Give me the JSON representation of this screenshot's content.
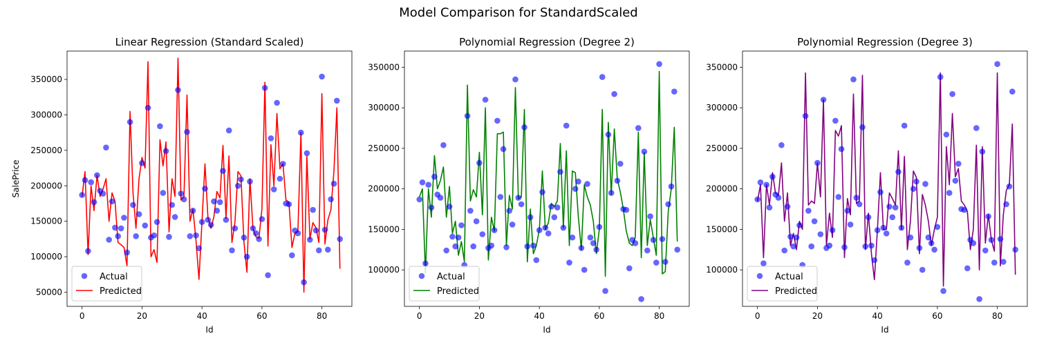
{
  "figure": {
    "suptitle": "Model Comparison for StandardScaled"
  },
  "chart_data": [
    {
      "type": "scatter+line",
      "title": "Linear Regression (Standard Scaled)",
      "xlabel": "Id",
      "ylabel": "SalePrice",
      "xlim": [
        -5,
        90
      ],
      "ylim": [
        30000,
        390000
      ],
      "xticks": [
        0,
        20,
        40,
        60,
        80
      ],
      "yticks": [
        50000,
        100000,
        150000,
        200000,
        250000,
        300000,
        350000
      ],
      "legend": {
        "position": "lower-left",
        "entries": [
          "Actual",
          "Predicted"
        ]
      },
      "colors": {
        "actual": "#0000ff",
        "predicted": "#ff0000"
      },
      "x": [
        0,
        1,
        2,
        3,
        4,
        5,
        6,
        7,
        8,
        9,
        10,
        11,
        12,
        13,
        14,
        15,
        16,
        17,
        18,
        19,
        20,
        21,
        22,
        23,
        24,
        25,
        26,
        27,
        28,
        29,
        30,
        31,
        32,
        33,
        34,
        35,
        36,
        37,
        38,
        39,
        40,
        41,
        42,
        43,
        44,
        45,
        46,
        47,
        48,
        49,
        50,
        51,
        52,
        53,
        54,
        55,
        56,
        57,
        58,
        59,
        60,
        61,
        62,
        63,
        64,
        65,
        66,
        67,
        68,
        69,
        70,
        71,
        72,
        73,
        74,
        75,
        76,
        77,
        78,
        79,
        80,
        81,
        82,
        83,
        84,
        85,
        86
      ],
      "actual": [
        187000,
        208000,
        108000,
        205000,
        177000,
        215000,
        193000,
        189000,
        254000,
        124000,
        178000,
        141000,
        129000,
        140000,
        155000,
        106000,
        290000,
        173000,
        129000,
        160000,
        232000,
        144000,
        310000,
        127000,
        130000,
        149000,
        284000,
        190000,
        249000,
        128000,
        173000,
        156000,
        335000,
        189000,
        181000,
        276000,
        129000,
        165000,
        130000,
        112000,
        149000,
        196000,
        152000,
        145000,
        178000,
        165000,
        177000,
        221000,
        152000,
        278000,
        109000,
        140000,
        200000,
        209000,
        127000,
        100000,
        206000,
        140000,
        133000,
        125000,
        153000,
        338000,
        74000,
        267000,
        195000,
        317000,
        210000,
        231000,
        175000,
        174000,
        102000,
        137000,
        133000,
        275000,
        64000,
        246000,
        124000,
        166000,
        137000,
        109000,
        354000,
        138000,
        110000,
        181000,
        203000,
        320000,
        125000
      ],
      "predicted": [
        185000,
        220000,
        103000,
        200000,
        165000,
        215000,
        185000,
        195000,
        210000,
        150000,
        190000,
        178000,
        120000,
        117000,
        113000,
        87000,
        305000,
        190000,
        140000,
        210000,
        240000,
        225000,
        375000,
        100000,
        110000,
        92000,
        265000,
        228000,
        262000,
        135000,
        210000,
        185000,
        380000,
        180000,
        185000,
        328000,
        150000,
        167000,
        123000,
        68000,
        150000,
        231000,
        155000,
        140000,
        157000,
        192000,
        183000,
        257000,
        154000,
        242000,
        120000,
        149000,
        220000,
        214000,
        120000,
        78000,
        210000,
        140000,
        128000,
        126000,
        168000,
        346000,
        115000,
        258000,
        200000,
        302000,
        224000,
        231000,
        180000,
        177000,
        113000,
        133000,
        135000,
        275000,
        50000,
        242000,
        125000,
        148000,
        141000,
        120000,
        330000,
        118000,
        152000,
        166000,
        220000,
        310000,
        83000
      ]
    },
    {
      "type": "scatter+line",
      "title": "Polynomial Regression (Degree 2)",
      "xlabel": "Id",
      "ylabel": "",
      "xlim": [
        -5,
        90
      ],
      "ylim": [
        55000,
        370000
      ],
      "xticks": [
        0,
        20,
        40,
        60,
        80
      ],
      "yticks": [
        100000,
        150000,
        200000,
        250000,
        300000,
        350000
      ],
      "legend": {
        "position": "lower-left",
        "entries": [
          "Actual",
          "Predicted"
        ]
      },
      "colors": {
        "actual": "#0000ff",
        "predicted": "#008000"
      },
      "x": [
        0,
        1,
        2,
        3,
        4,
        5,
        6,
        7,
        8,
        9,
        10,
        11,
        12,
        13,
        14,
        15,
        16,
        17,
        18,
        19,
        20,
        21,
        22,
        23,
        24,
        25,
        26,
        27,
        28,
        29,
        30,
        31,
        32,
        33,
        34,
        35,
        36,
        37,
        38,
        39,
        40,
        41,
        42,
        43,
        44,
        45,
        46,
        47,
        48,
        49,
        50,
        51,
        52,
        53,
        54,
        55,
        56,
        57,
        58,
        59,
        60,
        61,
        62,
        63,
        64,
        65,
        66,
        67,
        68,
        69,
        70,
        71,
        72,
        73,
        74,
        75,
        76,
        77,
        78,
        79,
        80,
        81,
        82,
        83,
        84,
        85,
        86
      ],
      "actual": [
        187000,
        208000,
        108000,
        205000,
        177000,
        215000,
        193000,
        189000,
        254000,
        124000,
        178000,
        141000,
        129000,
        140000,
        155000,
        106000,
        290000,
        173000,
        129000,
        160000,
        232000,
        144000,
        310000,
        127000,
        130000,
        149000,
        284000,
        190000,
        249000,
        128000,
        173000,
        156000,
        335000,
        189000,
        181000,
        276000,
        129000,
        165000,
        130000,
        112000,
        149000,
        196000,
        152000,
        145000,
        178000,
        165000,
        177000,
        221000,
        152000,
        278000,
        109000,
        140000,
        200000,
        209000,
        127000,
        100000,
        206000,
        140000,
        133000,
        125000,
        153000,
        338000,
        74000,
        267000,
        195000,
        317000,
        210000,
        231000,
        175000,
        174000,
        102000,
        137000,
        133000,
        275000,
        64000,
        246000,
        124000,
        166000,
        137000,
        109000,
        354000,
        138000,
        110000,
        181000,
        203000,
        320000,
        125000
      ],
      "predicted": [
        190000,
        200000,
        96000,
        200000,
        165000,
        241000,
        200000,
        210000,
        227000,
        165000,
        203000,
        145000,
        160000,
        118000,
        135000,
        110000,
        328000,
        185000,
        199000,
        190000,
        245000,
        168000,
        300000,
        112000,
        165000,
        148000,
        268000,
        268000,
        270000,
        130000,
        192000,
        175000,
        325000,
        188000,
        190000,
        298000,
        110000,
        175000,
        120000,
        130000,
        150000,
        222000,
        150000,
        158000,
        182000,
        178000,
        185000,
        256000,
        152000,
        247000,
        130000,
        222000,
        220000,
        166000,
        125000,
        205000,
        190000,
        180000,
        160000,
        120000,
        150000,
        298000,
        92000,
        282000,
        193000,
        274000,
        212000,
        196000,
        175000,
        148000,
        133000,
        130000,
        140000,
        270000,
        115000,
        245000,
        130000,
        162000,
        140000,
        118000,
        345000,
        95000,
        98000,
        172000,
        200000,
        276000,
        135000
      ]
    },
    {
      "type": "scatter+line",
      "title": "Polynomial Regression (Degree 3)",
      "xlabel": "Id",
      "ylabel": "",
      "xlim": [
        -5,
        90
      ],
      "ylim": [
        55000,
        370000
      ],
      "xticks": [
        0,
        20,
        40,
        60,
        80
      ],
      "yticks": [
        100000,
        150000,
        200000,
        250000,
        300000,
        350000
      ],
      "legend": {
        "position": "lower-left",
        "entries": [
          "Actual",
          "Predicted"
        ]
      },
      "colors": {
        "actual": "#0000ff",
        "predicted": "#800080"
      },
      "x": [
        0,
        1,
        2,
        3,
        4,
        5,
        6,
        7,
        8,
        9,
        10,
        11,
        12,
        13,
        14,
        15,
        16,
        17,
        18,
        19,
        20,
        21,
        22,
        23,
        24,
        25,
        26,
        27,
        28,
        29,
        30,
        31,
        32,
        33,
        34,
        35,
        36,
        37,
        38,
        39,
        40,
        41,
        42,
        43,
        44,
        45,
        46,
        47,
        48,
        49,
        50,
        51,
        52,
        53,
        54,
        55,
        56,
        57,
        58,
        59,
        60,
        61,
        62,
        63,
        64,
        65,
        66,
        67,
        68,
        69,
        70,
        71,
        72,
        73,
        74,
        75,
        76,
        77,
        78,
        79,
        80,
        81,
        82,
        83,
        84,
        85,
        86
      ],
      "actual": [
        187000,
        208000,
        108000,
        205000,
        177000,
        215000,
        193000,
        189000,
        254000,
        124000,
        178000,
        141000,
        129000,
        140000,
        155000,
        106000,
        290000,
        173000,
        129000,
        160000,
        232000,
        144000,
        310000,
        127000,
        130000,
        149000,
        284000,
        190000,
        249000,
        128000,
        173000,
        156000,
        335000,
        189000,
        181000,
        276000,
        129000,
        165000,
        130000,
        112000,
        149000,
        196000,
        152000,
        145000,
        178000,
        165000,
        177000,
        221000,
        152000,
        278000,
        109000,
        140000,
        200000,
        209000,
        127000,
        100000,
        206000,
        140000,
        133000,
        125000,
        153000,
        338000,
        74000,
        267000,
        195000,
        317000,
        210000,
        231000,
        175000,
        174000,
        102000,
        137000,
        133000,
        275000,
        64000,
        246000,
        124000,
        166000,
        137000,
        109000,
        354000,
        138000,
        110000,
        181000,
        203000,
        320000,
        125000
      ],
      "predicted": [
        185000,
        205000,
        115000,
        205000,
        180000,
        220000,
        195000,
        192000,
        232000,
        160000,
        195000,
        130000,
        145000,
        125000,
        160000,
        150000,
        343000,
        180000,
        185000,
        182000,
        232000,
        190000,
        310000,
        130000,
        170000,
        140000,
        272000,
        265000,
        278000,
        115000,
        188000,
        168000,
        317000,
        182000,
        185000,
        340000,
        125000,
        170000,
        120000,
        88000,
        150000,
        220000,
        150000,
        150000,
        195000,
        188000,
        180000,
        247000,
        150000,
        240000,
        125000,
        160000,
        222000,
        214000,
        120000,
        193000,
        180000,
        160000,
        130000,
        150000,
        165000,
        343000,
        80000,
        252000,
        205000,
        293000,
        215000,
        225000,
        185000,
        180000,
        172000,
        125000,
        150000,
        254000,
        100000,
        252000,
        133000,
        168000,
        137000,
        123000,
        343000,
        105000,
        168000,
        198000,
        205000,
        280000,
        94000
      ]
    }
  ]
}
